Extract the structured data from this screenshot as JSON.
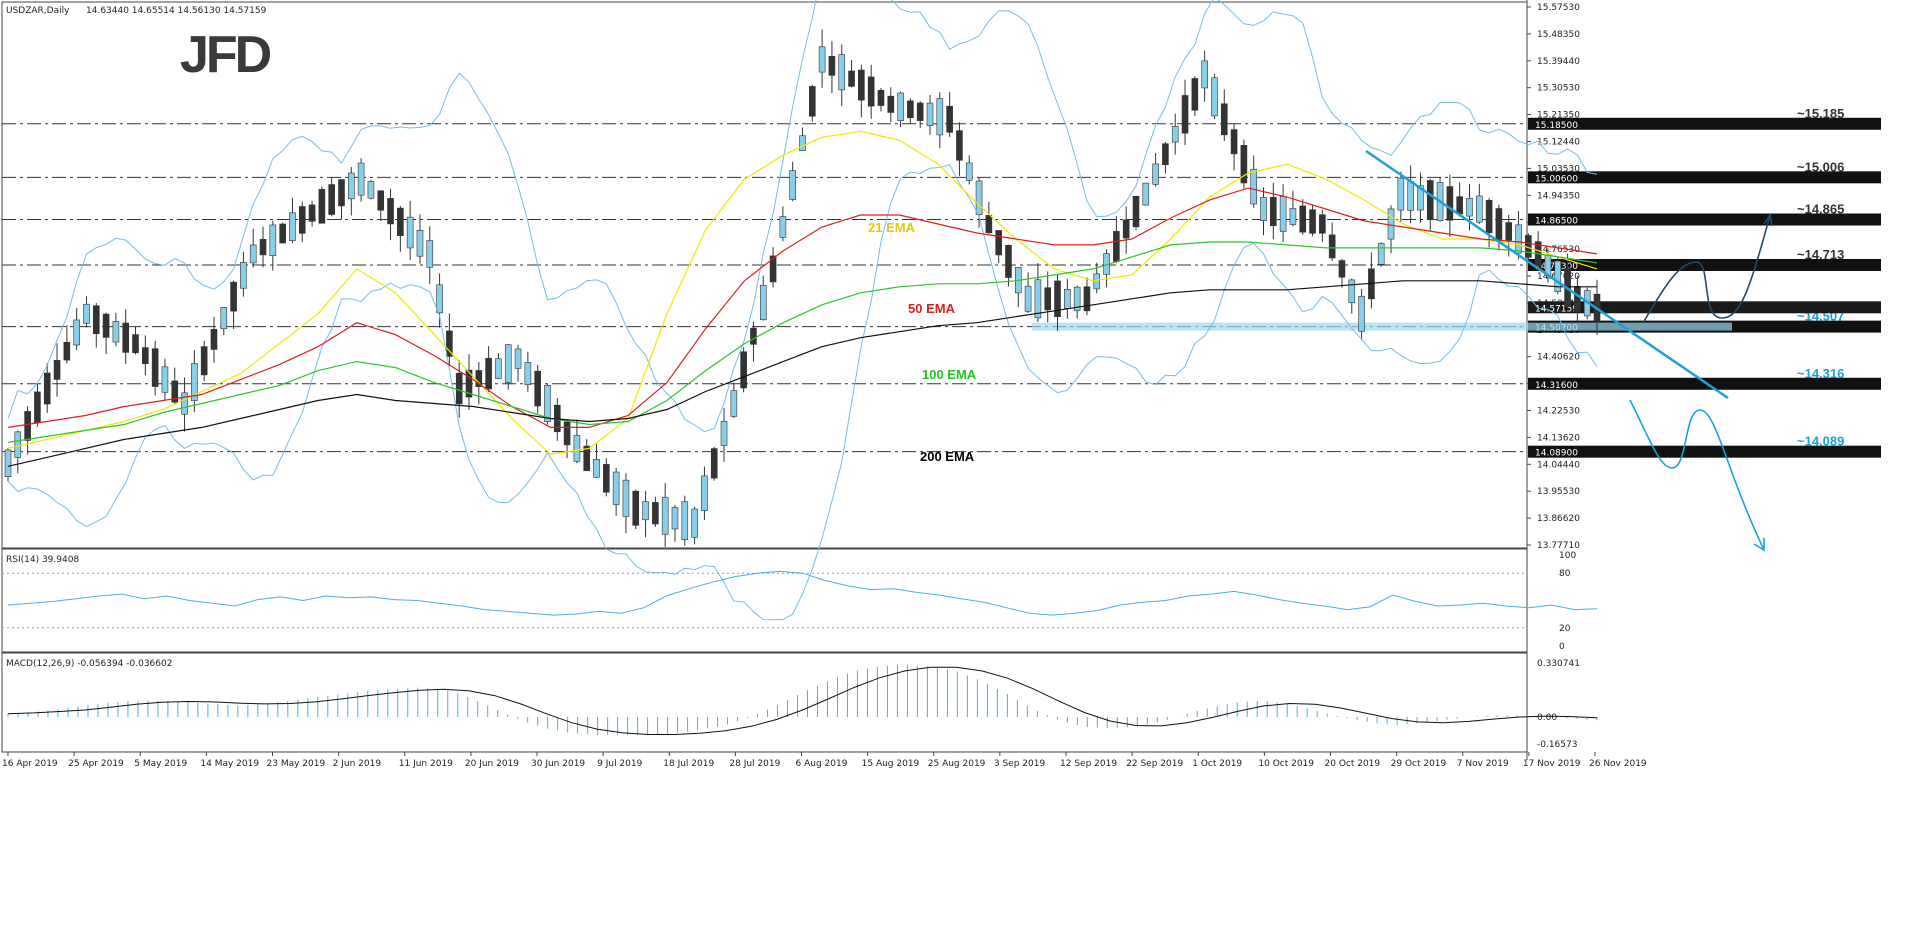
{
  "window": {
    "symbol": "USDZAR,Daily",
    "ohlc": "14.63440 14.65514 14.56130 14.57159"
  },
  "logo": {
    "text": "JFD"
  },
  "price_axis": {
    "ticks": [
      "15.57530",
      "15.48350",
      "15.39440",
      "15.30530",
      "15.21350",
      "15.12440",
      "15.03530",
      "14.94350",
      "14.85440",
      "14.76530",
      "14.67620",
      "14.58440",
      "14.49530",
      "14.40620",
      "14.31440",
      "14.22530",
      "14.13620",
      "14.04440",
      "13.95530",
      "13.86620",
      "13.77710"
    ],
    "current_price": {
      "label": "14.57159",
      "value": 14.57159
    }
  },
  "levels": [
    {
      "label": "~15.185",
      "axis_label": "15.18500",
      "value": 15.185,
      "color": "#333333"
    },
    {
      "label": "~15.006",
      "axis_label": "15.00600",
      "value": 15.006,
      "color": "#333333"
    },
    {
      "label": "~14.865",
      "axis_label": "14.86500",
      "value": 14.865,
      "color": "#333333"
    },
    {
      "label": "~14.713",
      "axis_label": "14.71300",
      "value": 14.713,
      "color": "#333333"
    },
    {
      "label": "~14.507",
      "axis_label": "14.50700",
      "value": 14.507,
      "color": "#1ba1d8"
    },
    {
      "label": "~14.316",
      "axis_label": "14.31600",
      "value": 14.316,
      "color": "#1ba1d8"
    },
    {
      "label": "~14.089",
      "axis_label": "14.08900",
      "value": 14.089,
      "color": "#1ba1d8"
    }
  ],
  "ema_labels": [
    {
      "text": "21 EMA",
      "color": "#e8c800"
    },
    {
      "text": "50 EMA",
      "color": "#e01e1e"
    },
    {
      "text": "100 EMA",
      "color": "#22c322"
    },
    {
      "text": "200 EMA",
      "color": "#000000"
    }
  ],
  "date_axis": [
    "16 Apr 2019",
    "25 Apr 2019",
    "5 May 2019",
    "14 May 2019",
    "23 May 2019",
    "2 Jun 2019",
    "11 Jun 2019",
    "20 Jun 2019",
    "30 Jun 2019",
    "9 Jul 2019",
    "18 Jul 2019",
    "28 Jul 2019",
    "6 Aug 2019",
    "15 Aug 2019",
    "25 Aug 2019",
    "3 Sep 2019",
    "12 Sep 2019",
    "22 Sep 2019",
    "1 Oct 2019",
    "10 Oct 2019",
    "20 Oct 2019",
    "29 Oct 2019",
    "7 Nov 2019",
    "17 Nov 2019",
    "26 Nov 2019"
  ],
  "rsi": {
    "title": "RSI(14) 39.9408",
    "ticks": [
      "100",
      "80",
      "20",
      "0"
    ]
  },
  "macd": {
    "title": "MACD(12,26,9) -0.056394 -0.036602",
    "ticks": [
      "0.330741",
      "0.00",
      "-0.16573"
    ]
  },
  "colors": {
    "bull": "#87ceeb",
    "bear": "#333333",
    "bollinger": "#74bde8",
    "trend": "#1ba1d8",
    "grid": "#333333"
  },
  "chart_data": {
    "type": "candlestick",
    "title": "USDZAR,Daily",
    "ylim": [
      13.7771,
      15.5753
    ],
    "series": [
      {
        "name": "21 EMA",
        "values": [
          14.1,
          14.13,
          14.16,
          14.19,
          14.23,
          14.29,
          14.35,
          14.45,
          14.55,
          14.7,
          14.62,
          14.48,
          14.34,
          14.2,
          14.08,
          14.1,
          14.2,
          14.55,
          14.83,
          15.0,
          15.08,
          15.14,
          15.16,
          15.13,
          15.05,
          14.92,
          14.8,
          14.7,
          14.66,
          14.68,
          14.8,
          14.94,
          15.02,
          15.05,
          15.0,
          14.93,
          14.85,
          14.8,
          14.8,
          14.78,
          14.74,
          14.7
        ]
      },
      {
        "name": "50 EMA",
        "values": [
          14.17,
          14.19,
          14.21,
          14.24,
          14.26,
          14.28,
          14.33,
          14.38,
          14.44,
          14.52,
          14.48,
          14.41,
          14.33,
          14.24,
          14.17,
          14.17,
          14.21,
          14.32,
          14.5,
          14.66,
          14.76,
          14.84,
          14.88,
          14.88,
          14.85,
          14.82,
          14.8,
          14.78,
          14.78,
          14.8,
          14.87,
          14.93,
          14.97,
          14.94,
          14.9,
          14.86,
          14.84,
          14.82,
          14.8,
          14.79,
          14.77,
          14.75
        ]
      },
      {
        "name": "100 EMA",
        "values": [
          14.12,
          14.14,
          14.16,
          14.18,
          14.22,
          14.25,
          14.28,
          14.31,
          14.36,
          14.39,
          14.37,
          14.32,
          14.28,
          14.24,
          14.2,
          14.18,
          14.19,
          14.26,
          14.36,
          14.45,
          14.52,
          14.58,
          14.62,
          14.64,
          14.65,
          14.65,
          14.66,
          14.68,
          14.7,
          14.74,
          14.78,
          14.79,
          14.79,
          14.78,
          14.77,
          14.77,
          14.77,
          14.77,
          14.77,
          14.76,
          14.74,
          14.72
        ]
      },
      {
        "name": "200 EMA",
        "values": [
          14.04,
          14.07,
          14.1,
          14.13,
          14.15,
          14.17,
          14.2,
          14.23,
          14.26,
          14.28,
          14.26,
          14.25,
          14.24,
          14.22,
          14.2,
          14.19,
          14.2,
          14.23,
          14.29,
          14.34,
          14.39,
          14.44,
          14.47,
          14.49,
          14.51,
          14.52,
          14.54,
          14.56,
          14.58,
          14.6,
          14.62,
          14.63,
          14.63,
          14.63,
          14.64,
          14.65,
          14.66,
          14.66,
          14.66,
          14.65,
          14.64,
          14.64
        ]
      }
    ],
    "rsi_values": [
      45,
      47,
      49,
      52,
      55,
      57,
      52,
      55,
      50,
      47,
      44,
      51,
      54,
      50,
      55,
      53,
      54,
      51,
      50,
      47,
      44,
      40,
      38,
      36,
      34,
      35,
      38,
      36,
      42,
      55,
      63,
      70,
      76,
      80,
      82,
      80,
      72,
      66,
      62,
      63,
      59,
      56,
      52,
      48,
      42,
      36,
      34,
      36,
      39,
      45,
      48,
      50,
      55,
      57,
      60,
      56,
      51,
      47,
      44,
      40,
      43,
      56,
      49,
      44,
      45,
      47,
      44,
      42,
      45,
      40,
      41
    ],
    "macd_values": [
      0.02,
      0.03,
      0.05,
      0.07,
      0.09,
      0.1,
      0.1,
      0.09,
      0.08,
      0.07,
      0.08,
      0.1,
      0.12,
      0.14,
      0.16,
      0.17,
      0.18,
      0.17,
      0.12,
      0.05,
      -0.02,
      -0.07,
      -0.1,
      -0.11,
      -0.11,
      -0.11,
      -0.1,
      -0.08,
      -0.05,
      0.0,
      0.07,
      0.15,
      0.22,
      0.28,
      0.31,
      0.32,
      0.31,
      0.28,
      0.22,
      0.14,
      0.05,
      -0.02,
      -0.06,
      -0.07,
      -0.06,
      -0.03,
      0.02,
      0.06,
      0.09,
      0.1,
      0.08,
      0.04,
      0.0,
      -0.03,
      -0.05,
      -0.04,
      -0.02,
      0.0,
      0.01,
      0.01,
      0.0,
      -0.01,
      -0.02
    ]
  }
}
